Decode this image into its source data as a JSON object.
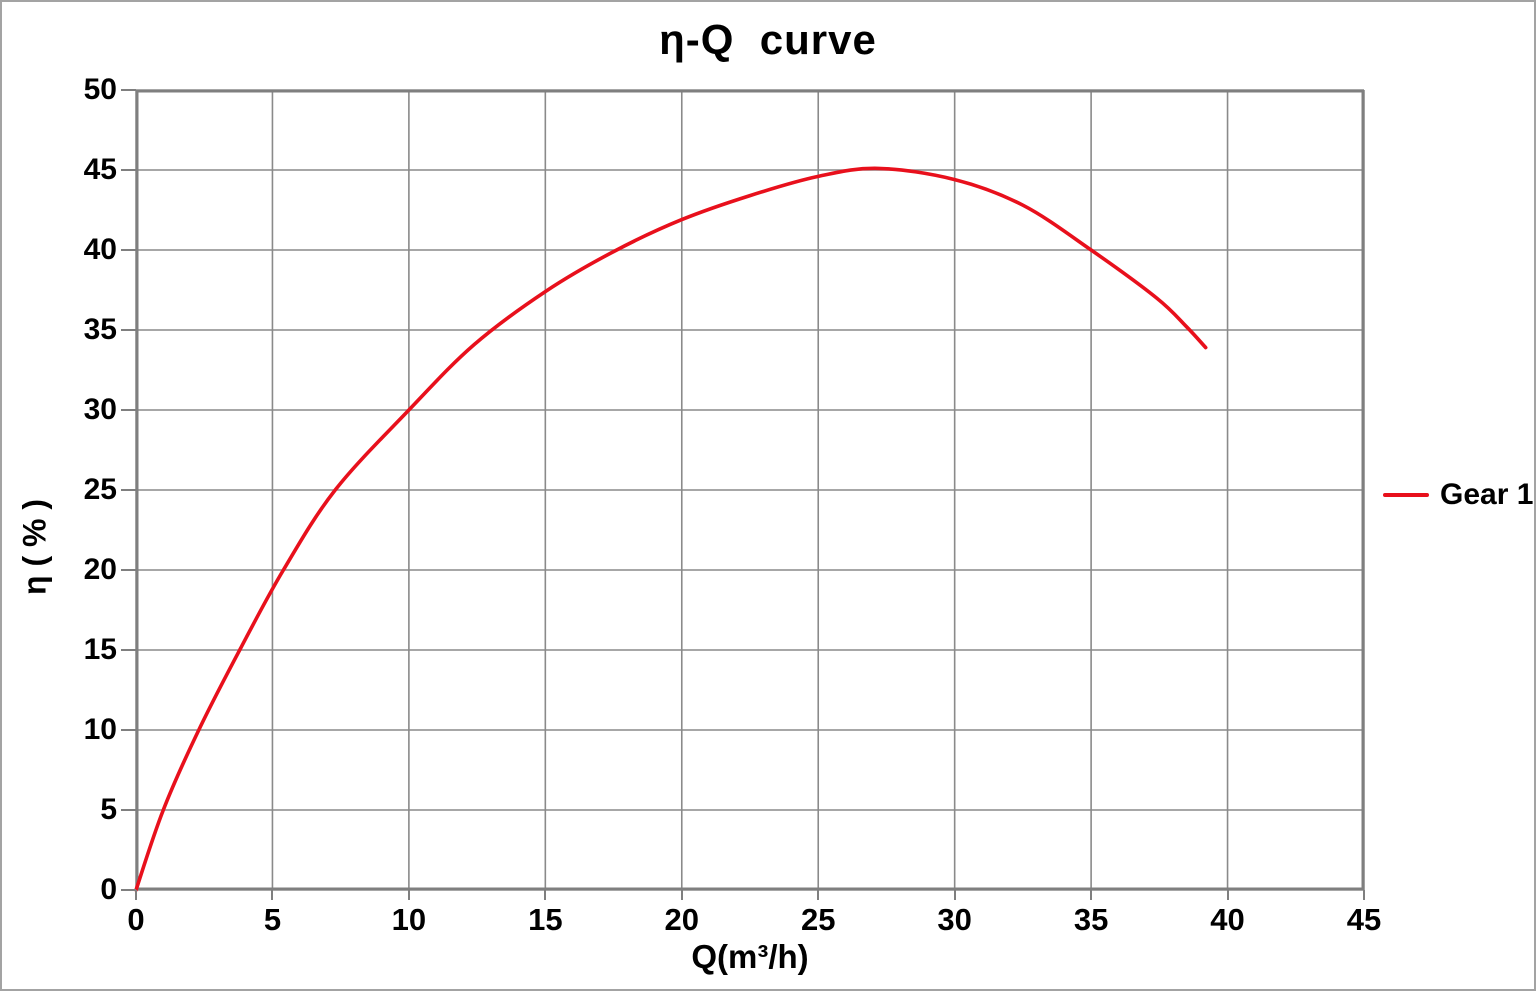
{
  "chart_data": {
    "type": "line",
    "title": "η-Q  curve",
    "xlabel": "Q(m³/h)",
    "ylabel": "η ( % )",
    "xlim": [
      0,
      45
    ],
    "ylim": [
      0,
      50
    ],
    "xticks": [
      0,
      5,
      10,
      15,
      20,
      25,
      30,
      35,
      40,
      45
    ],
    "yticks": [
      0,
      5,
      10,
      15,
      20,
      25,
      30,
      35,
      40,
      45,
      50
    ],
    "grid": true,
    "legend_position": "right",
    "series": [
      {
        "name": "Gear 1",
        "color": "#e8101c",
        "points": [
          [
            0,
            0
          ],
          [
            1,
            5
          ],
          [
            2.3,
            10
          ],
          [
            3.8,
            15
          ],
          [
            5.4,
            20
          ],
          [
            7.3,
            25
          ],
          [
            10,
            30
          ],
          [
            12.4,
            34.1
          ],
          [
            15,
            37.4
          ],
          [
            17.5,
            39.9
          ],
          [
            20,
            41.9
          ],
          [
            22.5,
            43.4
          ],
          [
            25,
            44.6
          ],
          [
            27.2,
            45.1
          ],
          [
            30,
            44.4
          ],
          [
            32.5,
            42.8
          ],
          [
            35,
            40
          ],
          [
            37.4,
            37
          ],
          [
            38.5,
            35.2
          ],
          [
            39.2,
            33.9
          ]
        ]
      }
    ]
  },
  "legend": {
    "items": [
      {
        "label": "Gear 1",
        "color": "#e8101c"
      }
    ]
  },
  "colors": {
    "grid": "#8a8a8a",
    "axis": "#7f7f7f",
    "text": "#000000",
    "frame_border": "#a3a3a3",
    "background": "#ffffff"
  }
}
